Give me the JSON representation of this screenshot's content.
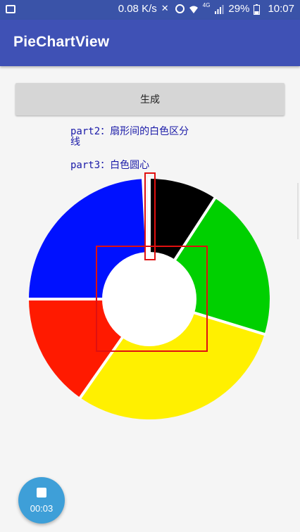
{
  "status_bar": {
    "speed": "0.08 K/s",
    "network": "4G",
    "battery": "29%",
    "time": "10:07"
  },
  "app_bar": {
    "title": "PieChartView"
  },
  "button": {
    "label": "生成"
  },
  "notes": {
    "part2": "part2：扇形间的白色区分线",
    "part3": "part3：白色圆心"
  },
  "fab": {
    "time": "00:03"
  },
  "pie": {
    "colors": [
      "#000000",
      "#00d000",
      "#fff000",
      "#ff1a00",
      "#0011ff"
    ],
    "slices": [
      {
        "name": "black",
        "start_deg": 0,
        "end_deg": 33
      },
      {
        "name": "green",
        "start_deg": 33,
        "end_deg": 107
      },
      {
        "name": "yellow",
        "start_deg": 107,
        "end_deg": 215
      },
      {
        "name": "red",
        "start_deg": 215,
        "end_deg": 270
      },
      {
        "name": "blue",
        "start_deg": 270,
        "end_deg": 357
      }
    ],
    "divider_color": "#ffffff",
    "center_color": "#ffffff",
    "highlight_color": "#e01010"
  }
}
